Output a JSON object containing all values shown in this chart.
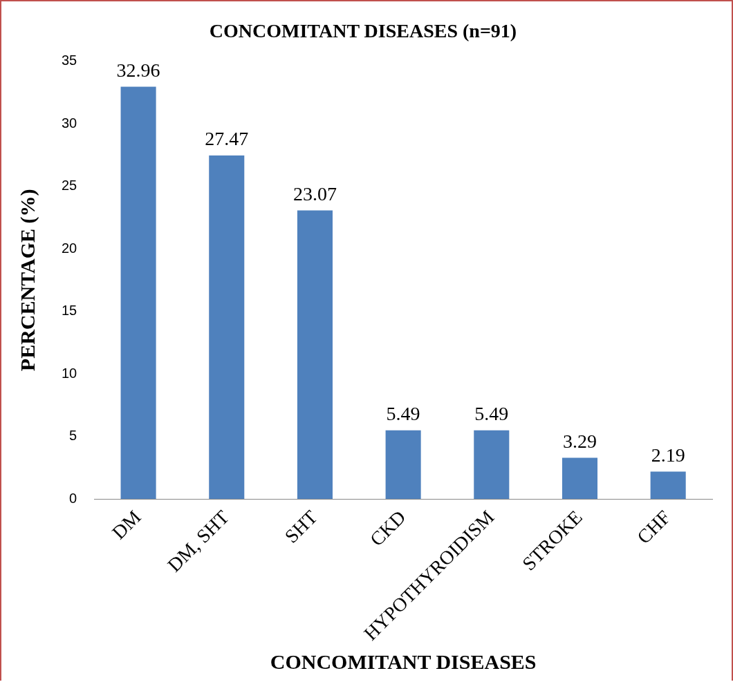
{
  "chart_data": {
    "type": "bar",
    "title": "CONCOMITANT DISEASES (n=91)",
    "xlabel": "CONCOMITANT DISEASES",
    "ylabel": "PERCENTAGE (%)",
    "categories": [
      "DM",
      "DM, SHT",
      "SHT",
      "CKD",
      "HYPOTHYROIDISM",
      "STROKE",
      "CHF"
    ],
    "values": [
      32.96,
      27.47,
      23.07,
      5.49,
      5.49,
      3.29,
      2.19
    ],
    "color": "#4f81bd",
    "ylim": [
      0,
      35
    ],
    "yticks": [
      0,
      5,
      10,
      15,
      20,
      25,
      30,
      35
    ],
    "grid": false,
    "legend": false,
    "data_labels": true
  }
}
